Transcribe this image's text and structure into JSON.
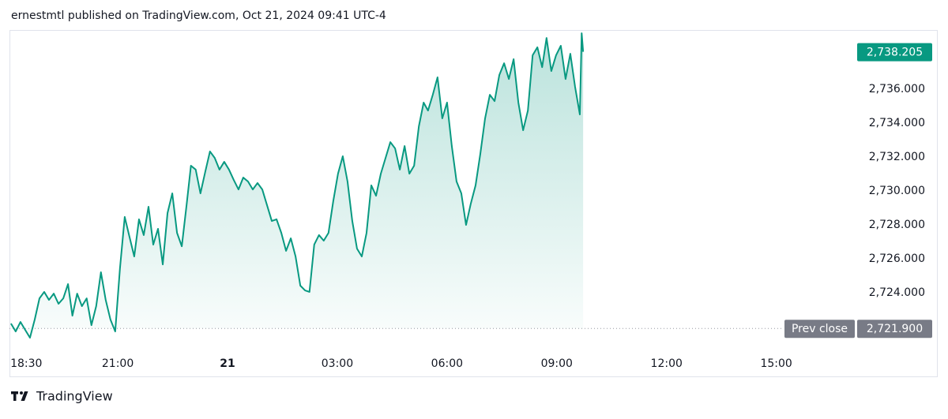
{
  "header": {
    "text": "ernestmtl published on TradingView.com, Oct 21, 2024 09:41 UTC-4"
  },
  "footer": {
    "brand": "TradingView"
  },
  "chart_data": {
    "type": "area",
    "color": "#089981",
    "x": [
      18.08,
      18.21,
      18.34,
      18.47,
      18.6,
      18.73,
      18.86,
      18.99,
      19.12,
      19.25,
      19.38,
      19.51,
      19.64,
      19.76,
      19.89,
      20.02,
      20.15,
      20.28,
      20.41,
      20.54,
      20.67,
      20.8,
      20.93,
      21.06,
      21.19,
      21.32,
      21.45,
      21.58,
      21.71,
      21.84,
      21.97,
      22.1,
      22.23,
      22.36,
      22.49,
      22.62,
      22.75,
      22.88,
      23.0,
      23.13,
      23.26,
      23.39,
      23.52,
      23.65,
      23.78,
      23.91,
      24.04,
      24.17,
      24.3,
      24.43,
      24.56,
      24.69,
      24.82,
      24.95,
      25.08,
      25.21,
      25.34,
      25.47,
      25.6,
      25.73,
      25.86,
      25.99,
      26.12,
      26.24,
      26.37,
      26.5,
      26.63,
      26.76,
      26.89,
      27.02,
      27.15,
      27.28,
      27.41,
      27.54,
      27.67,
      27.8,
      27.93,
      28.06,
      28.19,
      28.32,
      28.45,
      28.58,
      28.71,
      28.84,
      28.97,
      29.1,
      29.23,
      29.36,
      29.48,
      29.61,
      29.74,
      29.87,
      30.0,
      30.13,
      30.26,
      30.39,
      30.52,
      30.65,
      30.78,
      30.91,
      31.04,
      31.17,
      31.3,
      31.43,
      31.56,
      31.69,
      31.82,
      31.95,
      32.08,
      32.21,
      32.34,
      32.47,
      32.6,
      32.72,
      32.85,
      32.98,
      33.11,
      33.24,
      33.37,
      33.5,
      33.63,
      33.68,
      33.72
    ],
    "series": [
      {
        "color": "#089981",
        "values": [
          2722.19,
          2721.72,
          2722.28,
          2721.81,
          2721.35,
          2722.42,
          2723.67,
          2724.05,
          2723.58,
          2723.95,
          2723.35,
          2723.67,
          2724.51,
          2722.65,
          2723.95,
          2723.21,
          2723.67,
          2722.09,
          2723.21,
          2725.21,
          2723.58,
          2722.42,
          2721.72,
          2725.44,
          2728.47,
          2727.3,
          2726.14,
          2728.33,
          2727.4,
          2729.07,
          2726.84,
          2727.77,
          2725.67,
          2728.7,
          2729.86,
          2727.53,
          2726.74,
          2729.16,
          2731.49,
          2731.26,
          2729.86,
          2731.12,
          2732.33,
          2731.95,
          2731.26,
          2731.72,
          2731.26,
          2730.65,
          2730.09,
          2730.79,
          2730.56,
          2730.09,
          2730.47,
          2730.09,
          2729.16,
          2728.23,
          2728.33,
          2727.53,
          2726.47,
          2727.21,
          2726.14,
          2724.42,
          2724.14,
          2724.05,
          2726.84,
          2727.4,
          2727.07,
          2727.53,
          2729.4,
          2731.02,
          2732.05,
          2730.56,
          2728.23,
          2726.6,
          2726.14,
          2727.53,
          2730.33,
          2729.72,
          2731.02,
          2731.95,
          2732.88,
          2732.51,
          2731.26,
          2732.65,
          2731.02,
          2731.49,
          2733.81,
          2735.21,
          2734.74,
          2735.67,
          2736.7,
          2734.28,
          2735.21,
          2732.65,
          2730.56,
          2729.86,
          2728.0,
          2729.26,
          2730.33,
          2732.19,
          2734.28,
          2735.67,
          2735.3,
          2736.84,
          2737.53,
          2736.6,
          2737.77,
          2735.21,
          2733.58,
          2734.74,
          2738.0,
          2738.47,
          2737.3,
          2739.02,
          2737.07,
          2738.0,
          2738.56,
          2736.6,
          2738.09,
          2736.14,
          2734.51,
          2739.3,
          2738.205
        ]
      }
    ],
    "xlim": [
      18.04,
      41.21
    ],
    "xticks": [
      {
        "value": 18.5,
        "label": "18:30"
      },
      {
        "value": 21,
        "label": "21:00"
      },
      {
        "value": 24,
        "label": "21"
      },
      {
        "value": 27,
        "label": "03:00"
      },
      {
        "value": 30,
        "label": "06:00"
      },
      {
        "value": 33,
        "label": "09:00"
      },
      {
        "value": 36,
        "label": "12:00"
      },
      {
        "value": 39,
        "label": "15:00"
      }
    ],
    "ylim": [
      2720.56,
      2739.49
    ],
    "yticks": [
      {
        "value": 2724,
        "label": "2,724.000"
      },
      {
        "value": 2726,
        "label": "2,726.000"
      },
      {
        "value": 2728,
        "label": "2,728.000"
      },
      {
        "value": 2730,
        "label": "2,730.000"
      },
      {
        "value": 2732,
        "label": "2,732.000"
      },
      {
        "value": 2734,
        "label": "2,734.000"
      },
      {
        "value": 2736,
        "label": "2,736.000"
      }
    ],
    "last_price": {
      "value": 2738.205,
      "label": "2,738.205",
      "color": "#089981"
    },
    "prev_close": {
      "name": "Prev close",
      "value": 2721.9,
      "label": "2,721.900",
      "color": "#787b86"
    },
    "grid": false
  }
}
